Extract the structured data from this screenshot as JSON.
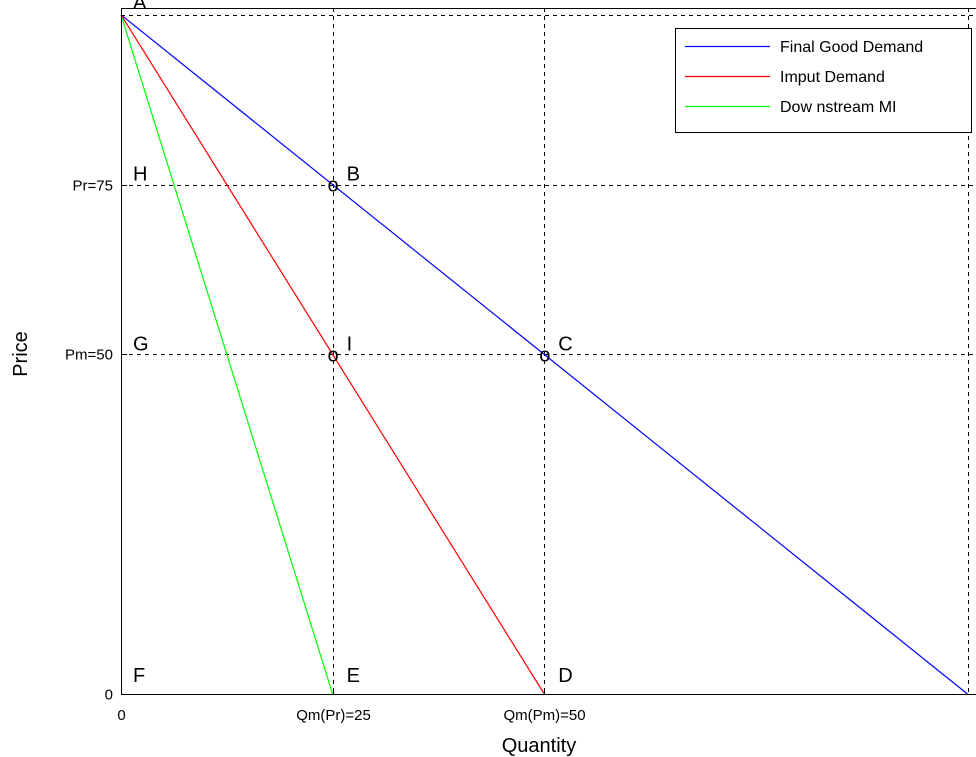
{
  "chart_data": {
    "type": "line",
    "xlabel": "Quantity",
    "ylabel": "Price",
    "xlim": [
      0,
      101
    ],
    "ylim": [
      0,
      101
    ],
    "grid": false,
    "legend": "top-right",
    "xticks": [
      {
        "value": 0,
        "label": "0"
      },
      {
        "value": 25,
        "label": "Qm(Pr)=25"
      },
      {
        "value": 50,
        "label": "Qm(Pm)=50"
      }
    ],
    "yticks": [
      {
        "value": 0,
        "label": "0"
      },
      {
        "value": 50,
        "label": "Pm=50"
      },
      {
        "value": 75,
        "label": "Pr=75"
      }
    ],
    "series": [
      {
        "name": "Final Good Demand",
        "color": "#0000ff",
        "x": [
          0,
          100
        ],
        "y": [
          100,
          0
        ]
      },
      {
        "name": "Imput Demand",
        "color": "#ff0000",
        "x": [
          0,
          50
        ],
        "y": [
          100,
          0
        ]
      },
      {
        "name": "Dow nstream MI",
        "color": "#00ff00",
        "x": [
          0,
          25
        ],
        "y": [
          100,
          0
        ]
      }
    ],
    "reference_lines": {
      "horizontal": [
        100,
        75,
        50
      ],
      "vertical": [
        25,
        50,
        100
      ]
    },
    "point_labels": [
      {
        "label": "A",
        "x": 0,
        "y": 100
      },
      {
        "label": "B",
        "x": 25,
        "y": 75
      },
      {
        "label": "C",
        "x": 50,
        "y": 50
      },
      {
        "label": "D",
        "x": 50,
        "y": 0
      },
      {
        "label": "E",
        "x": 25,
        "y": 0
      },
      {
        "label": "F",
        "x": 0,
        "y": 0
      },
      {
        "label": "G",
        "x": 0,
        "y": 50
      },
      {
        "label": "H",
        "x": 0,
        "y": 75
      },
      {
        "label": "I",
        "x": 25,
        "y": 50
      }
    ],
    "markers": [
      {
        "symbol": "o",
        "x": 25,
        "y": 75
      },
      {
        "symbol": "o",
        "x": 25,
        "y": 50
      },
      {
        "symbol": "o",
        "x": 50,
        "y": 50
      }
    ]
  }
}
